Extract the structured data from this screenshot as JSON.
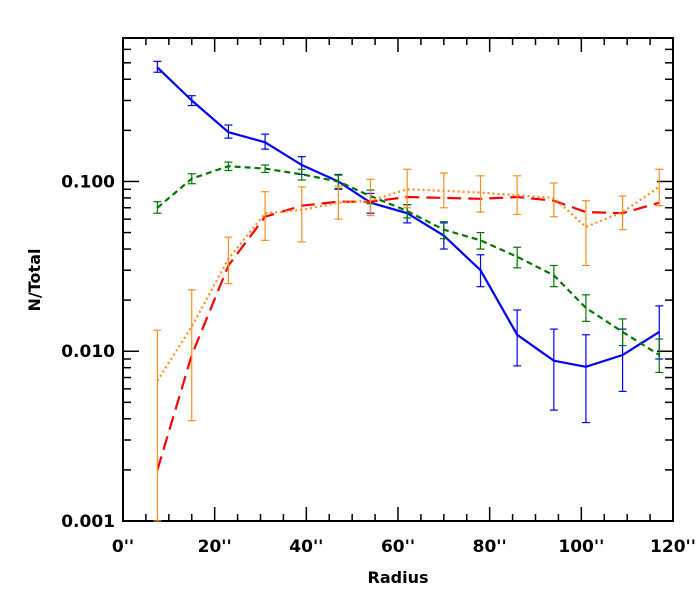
{
  "chart_data": {
    "type": "line",
    "title": "",
    "xlabel": "Radius",
    "ylabel": "N/Total",
    "xlim": [
      0,
      120
    ],
    "ylim": [
      0.001,
      0.7
    ],
    "yscale": "log",
    "grid": false,
    "x_ticks": [
      {
        "value": 0,
        "label": "0''"
      },
      {
        "value": 20,
        "label": "20''"
      },
      {
        "value": 40,
        "label": "40''"
      },
      {
        "value": 60,
        "label": "60''"
      },
      {
        "value": 80,
        "label": "80''"
      },
      {
        "value": 100,
        "label": "100''"
      },
      {
        "value": 120,
        "label": "120''"
      }
    ],
    "y_ticks": [
      {
        "value": 0.001,
        "label": "0.001"
      },
      {
        "value": 0.01,
        "label": "0.010"
      },
      {
        "value": 0.1,
        "label": "0.100"
      }
    ],
    "x": [
      7.5,
      15,
      23,
      31,
      39,
      47,
      54,
      62,
      70,
      78,
      86,
      94,
      101,
      109,
      117
    ],
    "series": [
      {
        "color": "#0000ff",
        "style": "solid",
        "values": [
          0.47,
          0.3,
          0.195,
          0.17,
          0.125,
          0.1,
          0.075,
          0.065,
          0.048,
          0.03,
          0.0125,
          0.0088,
          0.0081,
          0.0095,
          0.013
        ],
        "err_low": [
          0.44,
          0.28,
          0.18,
          0.155,
          0.11,
          0.09,
          0.065,
          0.057,
          0.04,
          0.024,
          0.0082,
          0.0045,
          0.0038,
          0.0058,
          0.009
        ],
        "err_high": [
          0.51,
          0.32,
          0.215,
          0.19,
          0.14,
          0.11,
          0.085,
          0.073,
          0.057,
          0.037,
          0.0175,
          0.0135,
          0.0125,
          0.0135,
          0.0185
        ]
      },
      {
        "color": "#007700",
        "style": "dashed",
        "values": [
          0.07,
          0.104,
          0.123,
          0.119,
          0.11,
          0.1,
          0.082,
          0.067,
          0.052,
          0.045,
          0.036,
          0.028,
          0.018,
          0.013,
          0.0095
        ],
        "err_low": [
          0.065,
          0.097,
          0.116,
          0.113,
          0.102,
          0.091,
          0.074,
          0.061,
          0.046,
          0.04,
          0.031,
          0.024,
          0.015,
          0.0108,
          0.0075
        ],
        "err_high": [
          0.076,
          0.111,
          0.13,
          0.125,
          0.118,
          0.109,
          0.089,
          0.073,
          0.058,
          0.05,
          0.041,
          0.032,
          0.0215,
          0.0155,
          0.0118
        ]
      },
      {
        "color": "#ff0000",
        "style": "longdash",
        "values": [
          0.002,
          0.0095,
          0.032,
          0.062,
          0.072,
          0.076,
          0.076,
          0.081,
          0.08,
          0.079,
          0.081,
          0.077,
          0.066,
          0.065,
          0.075
        ],
        "err_low": null,
        "err_high": null
      },
      {
        "color": "#ff8c1a",
        "style": "dotted",
        "values": [
          0.0067,
          0.014,
          0.035,
          0.065,
          0.068,
          0.075,
          0.077,
          0.09,
          0.088,
          0.086,
          0.083,
          0.08,
          0.054,
          0.066,
          0.093
        ],
        "err_low": [
          0.001,
          0.0039,
          0.025,
          0.045,
          0.044,
          0.06,
          0.063,
          0.07,
          0.07,
          0.066,
          0.064,
          0.062,
          0.032,
          0.052,
          0.072
        ],
        "err_high": [
          0.0133,
          0.023,
          0.047,
          0.087,
          0.093,
          0.094,
          0.103,
          0.118,
          0.112,
          0.108,
          0.108,
          0.098,
          0.077,
          0.082,
          0.118
        ]
      }
    ]
  }
}
